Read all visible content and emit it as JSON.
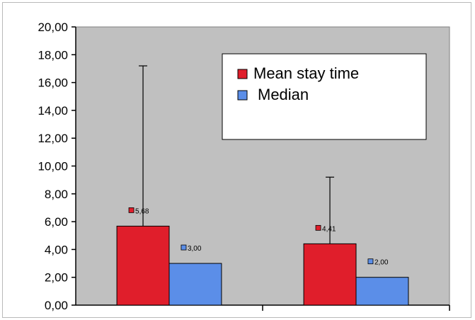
{
  "chart_data": {
    "type": "bar",
    "title": "",
    "xlabel": "",
    "ylabel": "",
    "categories": [
      "",
      ""
    ],
    "series": [
      {
        "name": "Mean stay time",
        "values": [
          5.68,
          4.41
        ],
        "value_labels": [
          "5,68",
          "4,41"
        ],
        "error_upper": [
          17.2,
          9.2
        ],
        "color": "#e01e2b"
      },
      {
        "name": "Median",
        "values": [
          3.0,
          2.0
        ],
        "value_labels": [
          "3,00",
          "2,00"
        ],
        "color": "#5b8ee8"
      }
    ],
    "ylim": [
      0,
      20
    ],
    "yticks": [
      0,
      2,
      4,
      6,
      8,
      10,
      12,
      14,
      16,
      18,
      20
    ],
    "ytick_labels": [
      "0,00",
      "2,00",
      "4,00",
      "6,00",
      "8,00",
      "10,00",
      "12,00",
      "14,00",
      "16,00",
      "18,00",
      "20,00"
    ],
    "plot_background": "#c0c0c0",
    "grid": false,
    "legend_position": "top-right"
  }
}
